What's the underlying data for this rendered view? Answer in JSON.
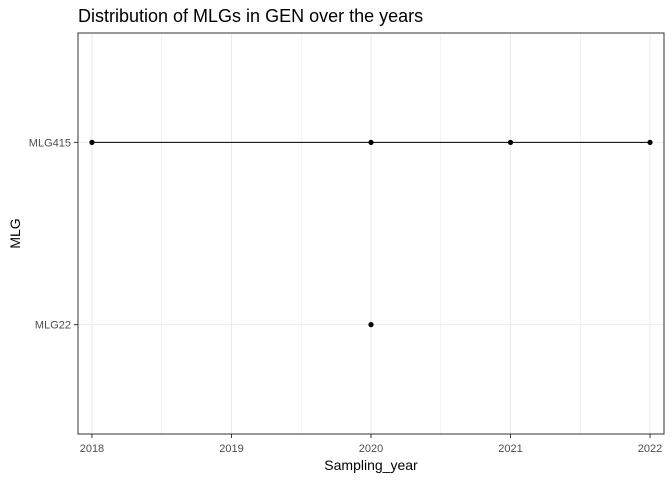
{
  "chart_data": {
    "type": "line",
    "title": "Distribution of MLGs in GEN over the years",
    "xlabel": "Sampling_year",
    "ylabel": "MLG",
    "x_ticks": [
      "2018",
      "2019",
      "2020",
      "2021",
      "2022"
    ],
    "xlim": [
      2017.9,
      2022.1
    ],
    "y_categories": [
      "MLG22",
      "MLG415"
    ],
    "grid": true,
    "legend": "none",
    "series": [
      {
        "category": "MLG415",
        "x": [
          2018,
          2020,
          2021,
          2022
        ],
        "connected": true
      },
      {
        "category": "MLG22",
        "x": [
          2020
        ],
        "connected": true
      }
    ],
    "colors": {
      "line": "#000000",
      "point": "#000000",
      "grid": "#ebebeb",
      "panel_border": "#333333"
    }
  }
}
